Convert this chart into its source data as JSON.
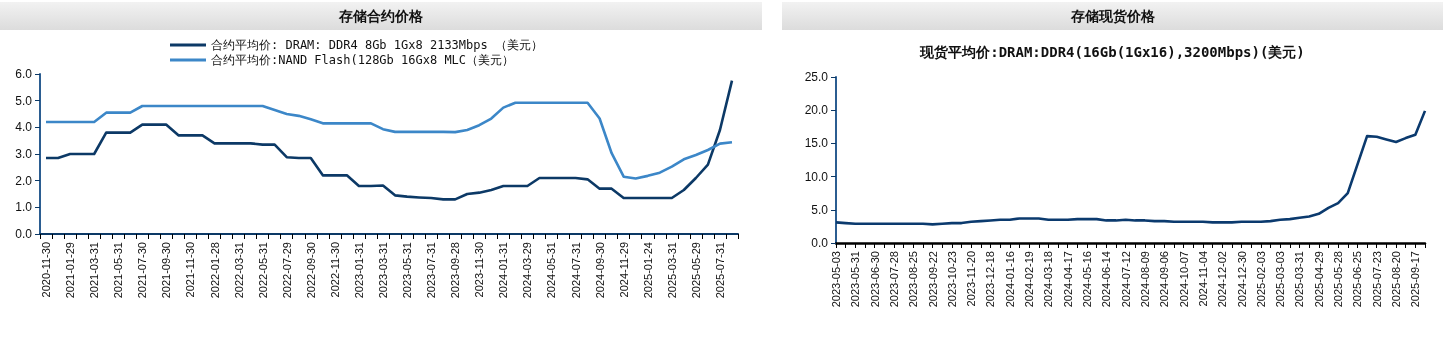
{
  "chart_data": [
    {
      "type": "line",
      "title": "存储合约价格",
      "categories": [
        "2020-11-30",
        null,
        "2021-01-29",
        null,
        "2021-03-31",
        null,
        "2021-05-31",
        null,
        "2021-07-30",
        null,
        "2021-09-30",
        null,
        "2021-11-30",
        null,
        "2022-01-28",
        null,
        "2022-03-31",
        null,
        "2022-05-31",
        null,
        "2022-07-29",
        null,
        "2022-09-30",
        null,
        "2022-11-30",
        null,
        "2023-01-31",
        null,
        "2023-03-31",
        null,
        "2023-05-31",
        null,
        "2023-07-31",
        null,
        "2023-09-28",
        null,
        "2023-11-30",
        null,
        "2024-01-31",
        null,
        "2024-03-29",
        null,
        "2024-05-31",
        null,
        "2024-07-31",
        null,
        "2024-09-30",
        null,
        "2024-11-29",
        null,
        "2025-01-24",
        null,
        "2025-03-31",
        null,
        "2025-05-29",
        null,
        "2025-07-31",
        null
      ],
      "series": [
        {
          "name": "合约平均价: DRAM: DDR4 8Gb 1Gx8 2133Mbps （美元）",
          "color": "#0c3966",
          "values": [
            2.85,
            2.85,
            3.0,
            3.0,
            3.0,
            3.8,
            3.8,
            3.8,
            4.1,
            4.1,
            4.1,
            3.7,
            3.7,
            3.7,
            3.4,
            3.4,
            3.4,
            3.4,
            3.35,
            3.35,
            2.88,
            2.85,
            2.85,
            2.2,
            2.2,
            2.2,
            1.8,
            1.8,
            1.82,
            1.45,
            1.4,
            1.37,
            1.35,
            1.3,
            1.3,
            1.5,
            1.55,
            1.65,
            1.8,
            1.8,
            1.8,
            2.1,
            2.1,
            2.1,
            2.1,
            2.05,
            1.7,
            1.7,
            1.35,
            1.35,
            1.35,
            1.35,
            1.35,
            1.65,
            2.1,
            2.6,
            3.9,
            5.75
          ]
        },
        {
          "name": "合约平均价:NAND Flash(128Gb 16Gx8 MLC（美元）",
          "color": "#3c87c8",
          "values": [
            4.2,
            4.2,
            4.2,
            4.2,
            4.2,
            4.55,
            4.55,
            4.55,
            4.8,
            4.8,
            4.8,
            4.8,
            4.8,
            4.8,
            4.8,
            4.8,
            4.8,
            4.8,
            4.8,
            4.65,
            4.5,
            4.43,
            4.3,
            4.15,
            4.15,
            4.15,
            4.15,
            4.15,
            3.93,
            3.83,
            3.83,
            3.83,
            3.83,
            3.83,
            3.82,
            3.9,
            4.08,
            4.33,
            4.74,
            4.92,
            4.92,
            4.92,
            4.92,
            4.92,
            4.92,
            4.92,
            4.33,
            3.03,
            2.15,
            2.08,
            2.18,
            2.3,
            2.53,
            2.8,
            2.96,
            3.15,
            3.39,
            3.44
          ]
        }
      ],
      "ylim": [
        0,
        6
      ],
      "yticks": [
        {
          "value": 0,
          "label": "0.0"
        },
        {
          "value": 1,
          "label": "1.0"
        },
        {
          "value": 2,
          "label": "2.0"
        },
        {
          "value": 3,
          "label": "3.0"
        },
        {
          "value": 4,
          "label": "4.0"
        },
        {
          "value": 5,
          "label": "5.0"
        },
        {
          "value": 6,
          "label": "6.0"
        }
      ],
      "legend": "top",
      "marker": "none"
    },
    {
      "type": "line",
      "title": "存储现货价格",
      "subtitle": "现货平均价:DRAM:DDR4(16Gb(1Gx16),3200Mbps)(美元)",
      "categories": [
        "2023-05-03",
        null,
        "2023-05-31",
        null,
        "2023-06-30",
        null,
        "2023-07-28",
        null,
        "2023-08-25",
        null,
        "2023-09-22",
        null,
        "2023-10-23",
        null,
        "2023-11-20",
        null,
        "2023-12-18",
        null,
        "2024-01-16",
        null,
        "2024-02-19",
        null,
        "2024-03-18",
        null,
        "2024-04-17",
        null,
        "2024-05-16",
        null,
        "2024-06-14",
        null,
        "2024-07-12",
        null,
        "2024-08-09",
        null,
        "2024-09-06",
        null,
        "2024-10-07",
        null,
        "2024-11-04",
        null,
        "2024-12-02",
        null,
        "2024-12-30",
        null,
        "2025-02-03",
        null,
        "2025-03-03",
        null,
        "2025-03-31",
        null,
        "2025-04-29",
        null,
        "2025-05-28",
        null,
        "2025-06-25",
        null,
        "2025-07-23",
        null,
        "2025-08-20",
        null,
        "2025-09-17",
        null
      ],
      "series": [
        {
          "color": "#0b3a6e",
          "values": [
            3.1,
            3.0,
            2.9,
            2.9,
            2.9,
            2.9,
            2.9,
            2.9,
            2.9,
            2.9,
            2.8,
            2.9,
            3.0,
            3.0,
            3.2,
            3.3,
            3.4,
            3.5,
            3.5,
            3.7,
            3.7,
            3.7,
            3.5,
            3.5,
            3.5,
            3.6,
            3.6,
            3.6,
            3.4,
            3.4,
            3.5,
            3.4,
            3.4,
            3.3,
            3.3,
            3.2,
            3.2,
            3.2,
            3.2,
            3.1,
            3.1,
            3.1,
            3.2,
            3.2,
            3.2,
            3.3,
            3.5,
            3.6,
            3.8,
            4.0,
            4.4,
            5.3,
            6.0,
            7.5,
            11.8,
            16.1,
            16.0,
            15.6,
            15.2,
            15.8,
            16.3,
            19.9
          ]
        }
      ],
      "ylim": [
        0,
        25
      ],
      "yticks": [
        {
          "value": 0,
          "label": "0.0"
        },
        {
          "value": 5,
          "label": "5.0"
        },
        {
          "value": 10,
          "label": "10.0"
        },
        {
          "value": 15,
          "label": "15.0"
        },
        {
          "value": 20,
          "label": "20.0"
        },
        {
          "value": 25,
          "label": "25.0"
        }
      ],
      "marker": "none"
    }
  ]
}
